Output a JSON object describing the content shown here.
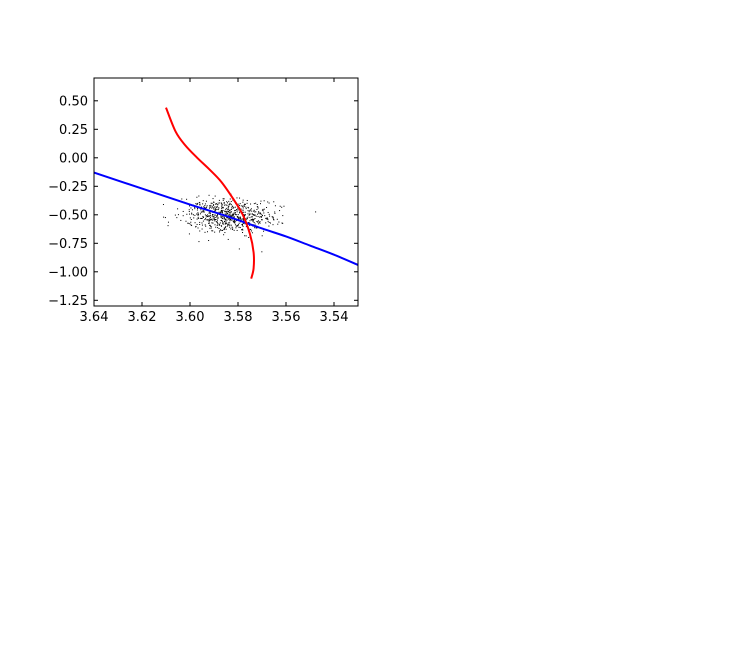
{
  "chart_data": {
    "type": "line",
    "title": "",
    "xlabel": "",
    "ylabel": "",
    "xlim": [
      3.64,
      3.53
    ],
    "x_axis_inverted": true,
    "ylim": [
      -1.3,
      0.7
    ],
    "xticks": [
      3.64,
      3.62,
      3.6,
      3.58,
      3.56,
      3.54
    ],
    "xtick_labels": [
      "3.64",
      "3.62",
      "3.60",
      "3.58",
      "3.56",
      "3.54"
    ],
    "yticks": [
      0.5,
      0.25,
      0.0,
      -0.25,
      -0.5,
      -0.75,
      -1.0,
      -1.25
    ],
    "ytick_labels": [
      "0.50",
      "0.25",
      "0.00",
      "−0.25",
      "−0.50",
      "−0.75",
      "−1.00",
      "−1.25"
    ],
    "grid": false,
    "legend": "none",
    "series": [
      {
        "color": "#0000ff",
        "kind": "line",
        "x": [
          3.64,
          3.62,
          3.6,
          3.585,
          3.57,
          3.56,
          3.55,
          3.54,
          3.53
        ],
        "y": [
          -0.13,
          -0.27,
          -0.41,
          -0.51,
          -0.62,
          -0.69,
          -0.77,
          -0.85,
          -0.94
        ]
      },
      {
        "color": "#ff0000",
        "kind": "line",
        "x": [
          3.61,
          3.606,
          3.602,
          3.597,
          3.592,
          3.587,
          3.582,
          3.578,
          3.575,
          3.5735,
          3.5735,
          3.5745
        ],
        "y": [
          0.44,
          0.23,
          0.11,
          0.0,
          -0.1,
          -0.21,
          -0.36,
          -0.5,
          -0.67,
          -0.83,
          -0.97,
          -1.06
        ]
      },
      {
        "color": "#000000",
        "kind": "scatter",
        "description": "dense cloud of small black points",
        "center": [
          3.584,
          -0.51
        ],
        "spread": [
          0.009,
          0.075
        ],
        "count": 700
      }
    ]
  }
}
